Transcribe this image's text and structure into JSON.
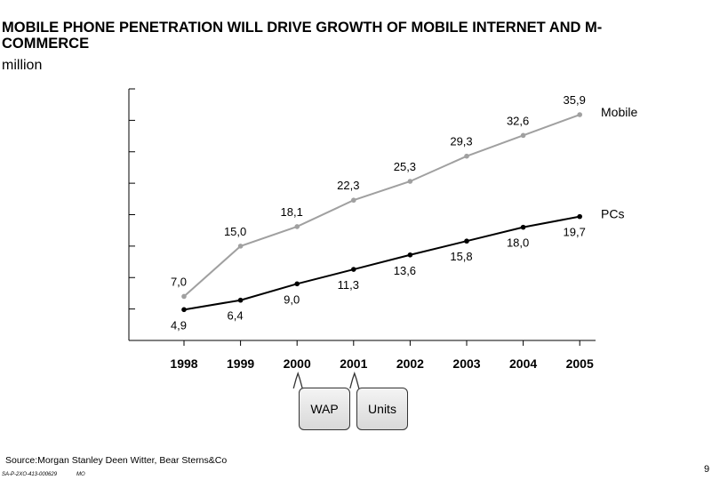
{
  "title": "MOBILE PHONE PENETRATION WILL DRIVE GROWTH OF MOBILE INTERNET AND M-COMMERCE",
  "unit": "million",
  "chart_data": {
    "type": "line",
    "x": [
      "1998",
      "1999",
      "2000",
      "2001",
      "2002",
      "2003",
      "2004",
      "2005"
    ],
    "ylim": [
      0,
      40
    ],
    "yticks_interval": 5,
    "ytick_labels_shown": false,
    "grid": false,
    "series": [
      {
        "name": "Mobile",
        "values": [
          7.0,
          15.0,
          18.1,
          22.3,
          25.3,
          29.3,
          32.6,
          35.9
        ],
        "labels": [
          "7,0",
          "15,0",
          "18,1",
          "22,3",
          "25,3",
          "29,3",
          "32,6",
          "35,9"
        ],
        "color": "#a0a0a0"
      },
      {
        "name": "PCs",
        "values": [
          4.9,
          6.4,
          9.0,
          11.3,
          13.6,
          15.8,
          18.0,
          19.7
        ],
        "labels": [
          "4,9",
          "6,4",
          "9,0",
          "11,3",
          "13,6",
          "15,8",
          "18,0",
          "19,7"
        ],
        "color": "#000000"
      }
    ]
  },
  "callouts": [
    {
      "label": "WAP",
      "year": "2000"
    },
    {
      "label": "Units",
      "year": "2001"
    }
  ],
  "source": "Source:Morgan  Stanley Deen Witter, Bear Sterns&Co",
  "doc_code": "SA-P-2XO-413-000629",
  "initials": "MO",
  "page_number": "9"
}
